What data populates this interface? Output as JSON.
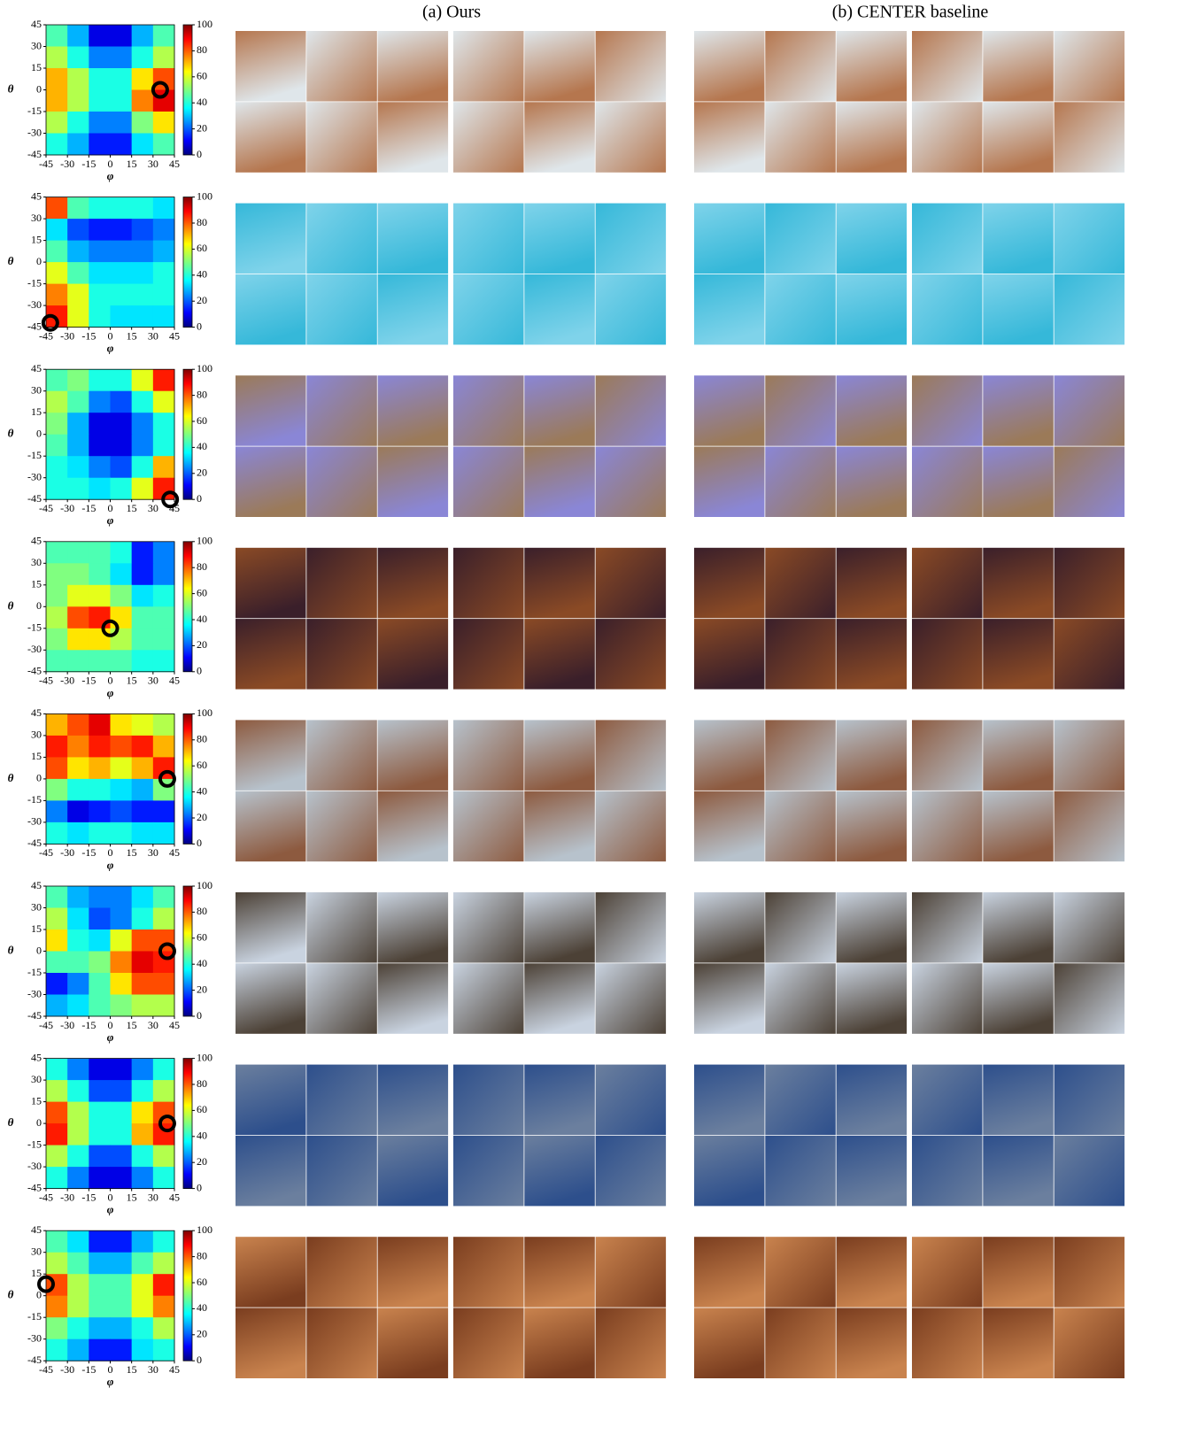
{
  "headers": [
    "(a) Ours",
    "(b) CENTER baseline"
  ],
  "chart_data": [
    {
      "type": "heatmap",
      "xlabel": "φ",
      "ylabel": "θ",
      "xlim": [
        -45,
        45
      ],
      "ylim": [
        -45,
        45
      ],
      "xticks": [
        -45,
        -30,
        -15,
        0,
        15,
        30,
        45
      ],
      "yticks": [
        45,
        30,
        15,
        0,
        -15,
        -30,
        -45
      ],
      "zlim": [
        0,
        100
      ],
      "zticks": [
        0,
        20,
        40,
        60,
        80,
        100
      ],
      "marker": {
        "phi": 35,
        "theta": 0
      },
      "values": [
        [
          45,
          30,
          10,
          10,
          30,
          45
        ],
        [
          55,
          40,
          25,
          25,
          40,
          55
        ],
        [
          70,
          55,
          40,
          40,
          65,
          80
        ],
        [
          70,
          55,
          40,
          40,
          75,
          90
        ],
        [
          55,
          40,
          25,
          25,
          50,
          65
        ],
        [
          40,
          30,
          15,
          15,
          35,
          45
        ]
      ]
    },
    {
      "type": "heatmap",
      "xlabel": "φ",
      "ylabel": "θ",
      "xlim": [
        -45,
        45
      ],
      "ylim": [
        -45,
        45
      ],
      "xticks": [
        -45,
        -30,
        -15,
        0,
        15,
        30,
        45
      ],
      "yticks": [
        45,
        30,
        15,
        0,
        -15,
        -30,
        -45
      ],
      "zlim": [
        0,
        100
      ],
      "zticks": [
        0,
        20,
        40,
        60,
        80,
        100
      ],
      "marker": {
        "phi": -42,
        "theta": -42
      },
      "values": [
        [
          80,
          45,
          40,
          40,
          40,
          35
        ],
        [
          35,
          20,
          15,
          15,
          20,
          25
        ],
        [
          45,
          30,
          25,
          25,
          25,
          30
        ],
        [
          60,
          45,
          35,
          35,
          35,
          40
        ],
        [
          75,
          60,
          40,
          40,
          40,
          40
        ],
        [
          85,
          60,
          40,
          35,
          35,
          35
        ]
      ]
    },
    {
      "type": "heatmap",
      "xlabel": "φ",
      "ylabel": "θ",
      "xlim": [
        -45,
        45
      ],
      "ylim": [
        -45,
        45
      ],
      "xticks": [
        -45,
        -30,
        -15,
        0,
        15,
        30,
        45
      ],
      "yticks": [
        45,
        30,
        15,
        0,
        -15,
        -30,
        -45
      ],
      "zlim": [
        0,
        100
      ],
      "zticks": [
        0,
        20,
        40,
        60,
        80,
        100
      ],
      "marker": {
        "phi": 42,
        "theta": -45
      },
      "values": [
        [
          45,
          50,
          40,
          40,
          60,
          85
        ],
        [
          55,
          45,
          25,
          20,
          40,
          60
        ],
        [
          50,
          30,
          10,
          10,
          25,
          40
        ],
        [
          45,
          30,
          10,
          10,
          25,
          40
        ],
        [
          40,
          35,
          25,
          20,
          40,
          70
        ],
        [
          40,
          40,
          35,
          40,
          60,
          85
        ]
      ]
    },
    {
      "type": "heatmap",
      "xlabel": "φ",
      "ylabel": "θ",
      "xlim": [
        -45,
        45
      ],
      "ylim": [
        -45,
        45
      ],
      "xticks": [
        -45,
        -30,
        -15,
        0,
        15,
        30,
        45
      ],
      "yticks": [
        45,
        30,
        15,
        0,
        -15,
        -30,
        -45
      ],
      "zlim": [
        0,
        100
      ],
      "zticks": [
        0,
        20,
        40,
        60,
        80,
        100
      ],
      "marker": {
        "phi": 0,
        "theta": -15
      },
      "values": [
        [
          45,
          45,
          45,
          40,
          15,
          25
        ],
        [
          50,
          50,
          45,
          35,
          15,
          25
        ],
        [
          50,
          60,
          60,
          50,
          35,
          40
        ],
        [
          55,
          80,
          85,
          65,
          45,
          45
        ],
        [
          50,
          65,
          65,
          55,
          45,
          45
        ],
        [
          45,
          45,
          45,
          45,
          40,
          40
        ]
      ]
    },
    {
      "type": "heatmap",
      "xlabel": "φ",
      "ylabel": "θ",
      "xlim": [
        -45,
        45
      ],
      "ylim": [
        -45,
        45
      ],
      "xticks": [
        -45,
        -30,
        -15,
        0,
        15,
        30,
        45
      ],
      "yticks": [
        45,
        30,
        15,
        0,
        -15,
        -30,
        -45
      ],
      "zlim": [
        0,
        100
      ],
      "zticks": [
        0,
        20,
        40,
        60,
        80,
        100
      ],
      "marker": {
        "phi": 40,
        "theta": 0
      },
      "values": [
        [
          70,
          80,
          90,
          65,
          60,
          55
        ],
        [
          85,
          75,
          85,
          80,
          85,
          70
        ],
        [
          80,
          65,
          70,
          60,
          70,
          85
        ],
        [
          50,
          40,
          40,
          35,
          30,
          50
        ],
        [
          25,
          10,
          15,
          20,
          15,
          15
        ],
        [
          40,
          35,
          40,
          40,
          35,
          35
        ]
      ]
    },
    {
      "type": "heatmap",
      "xlabel": "φ",
      "ylabel": "θ",
      "xlim": [
        -45,
        45
      ],
      "ylim": [
        -45,
        45
      ],
      "xticks": [
        -45,
        -30,
        -15,
        0,
        15,
        30,
        45
      ],
      "yticks": [
        45,
        30,
        15,
        0,
        -15,
        -30,
        -45
      ],
      "zlim": [
        0,
        100
      ],
      "zticks": [
        0,
        20,
        40,
        60,
        80,
        100
      ],
      "marker": {
        "phi": 40,
        "theta": 0
      },
      "values": [
        [
          45,
          30,
          25,
          25,
          35,
          45
        ],
        [
          55,
          35,
          20,
          25,
          40,
          55
        ],
        [
          65,
          40,
          35,
          60,
          80,
          80
        ],
        [
          45,
          45,
          50,
          75,
          90,
          85
        ],
        [
          15,
          25,
          45,
          65,
          80,
          80
        ],
        [
          30,
          35,
          45,
          50,
          55,
          55
        ]
      ]
    },
    {
      "type": "heatmap",
      "xlabel": "φ",
      "ylabel": "θ",
      "xlim": [
        -45,
        45
      ],
      "ylim": [
        -45,
        45
      ],
      "xticks": [
        -45,
        -30,
        -15,
        0,
        15,
        30,
        45
      ],
      "yticks": [
        45,
        30,
        15,
        0,
        -15,
        -30,
        -45
      ],
      "zlim": [
        0,
        100
      ],
      "zticks": [
        0,
        20,
        40,
        60,
        80,
        100
      ],
      "marker": {
        "phi": 40,
        "theta": 0
      },
      "values": [
        [
          40,
          25,
          10,
          10,
          25,
          40
        ],
        [
          55,
          40,
          20,
          20,
          40,
          55
        ],
        [
          80,
          55,
          40,
          40,
          65,
          80
        ],
        [
          85,
          55,
          40,
          40,
          70,
          85
        ],
        [
          55,
          40,
          20,
          20,
          40,
          55
        ],
        [
          40,
          25,
          10,
          10,
          25,
          40
        ]
      ]
    },
    {
      "type": "heatmap",
      "xlabel": "φ",
      "ylabel": "θ",
      "xlim": [
        -45,
        45
      ],
      "ylim": [
        -45,
        45
      ],
      "xticks": [
        -45,
        -30,
        -15,
        0,
        15,
        30,
        45
      ],
      "yticks": [
        45,
        30,
        15,
        0,
        -15,
        -30,
        -45
      ],
      "zlim": [
        0,
        100
      ],
      "zticks": [
        0,
        20,
        40,
        60,
        80,
        100
      ],
      "marker": {
        "phi": -45,
        "theta": 8
      },
      "values": [
        [
          45,
          35,
          15,
          15,
          30,
          40
        ],
        [
          55,
          45,
          30,
          30,
          45,
          55
        ],
        [
          80,
          55,
          45,
          45,
          60,
          85
        ],
        [
          75,
          55,
          45,
          45,
          60,
          75
        ],
        [
          50,
          40,
          30,
          30,
          40,
          55
        ],
        [
          40,
          30,
          15,
          15,
          35,
          40
        ]
      ]
    }
  ]
}
